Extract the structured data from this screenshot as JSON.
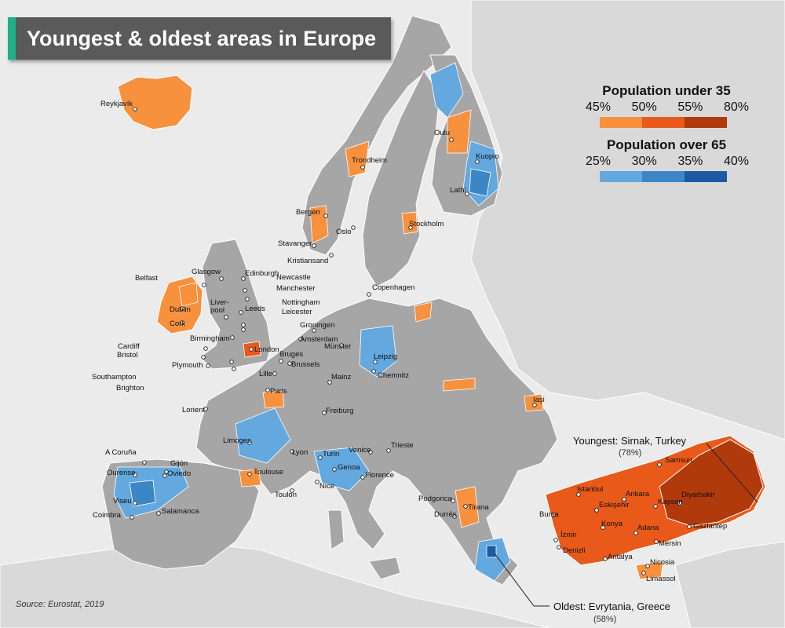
{
  "title": "Youngest & oldest areas in Europe",
  "legend": {
    "young": {
      "title": "Population under 35",
      "ticks": [
        "45%",
        "50%",
        "55%",
        "80%"
      ],
      "colors": [
        "#f7913e",
        "#e8591a",
        "#b13a0c"
      ]
    },
    "old": {
      "title": "Population over 65",
      "ticks": [
        "25%",
        "30%",
        "35%",
        "40%"
      ],
      "colors": [
        "#63a8de",
        "#3d86c6",
        "#1e5aa4"
      ]
    }
  },
  "source": "Source: Eurostat, 2019",
  "callouts": {
    "youngest": {
      "label": "Youngest: Sirnak, Turkey",
      "value": "(78%)"
    },
    "oldest": {
      "label": "Oldest: Evrytania, Greece",
      "value": "(58%)"
    }
  },
  "colors": {
    "land": "#a6a6a6",
    "sea": "#ebebeb",
    "other_land": "#d9d9d9",
    "border": "#ffffff"
  },
  "cities": [
    {
      "name": "Reykjavík"
    },
    {
      "name": "Oulu"
    },
    {
      "name": "Trondheim"
    },
    {
      "name": "Kuopio"
    },
    {
      "name": "Lathi"
    },
    {
      "name": "Bergen"
    },
    {
      "name": "Oslo"
    },
    {
      "name": "Stockholm"
    },
    {
      "name": "Stavanger"
    },
    {
      "name": "Kristiansand"
    },
    {
      "name": "Belfast"
    },
    {
      "name": "Glasgow"
    },
    {
      "name": "Edinburgh"
    },
    {
      "name": "Newcastle"
    },
    {
      "name": "Manchester"
    },
    {
      "name": "Liver-"
    },
    {
      "name": "pool"
    },
    {
      "name": "Leeds"
    },
    {
      "name": "Nottingham"
    },
    {
      "name": "Leicester"
    },
    {
      "name": "Copenhagen"
    },
    {
      "name": "Dublin"
    },
    {
      "name": "Cork"
    },
    {
      "name": "Birmingham"
    },
    {
      "name": "Groningen"
    },
    {
      "name": "Amsterdam"
    },
    {
      "name": "Cardiff"
    },
    {
      "name": "London"
    },
    {
      "name": "Münster"
    },
    {
      "name": "Bristol"
    },
    {
      "name": "Bruges"
    },
    {
      "name": "Leipzig"
    },
    {
      "name": "Plymouth"
    },
    {
      "name": "Brussels"
    },
    {
      "name": "Lille"
    },
    {
      "name": "Chemnitz"
    },
    {
      "name": "Southampton"
    },
    {
      "name": "Brighton"
    },
    {
      "name": "Mainz"
    },
    {
      "name": "Paris"
    },
    {
      "name": "Iaşi"
    },
    {
      "name": "Lorient"
    },
    {
      "name": "Freiburg"
    },
    {
      "name": "Limoges"
    },
    {
      "name": "Lyon"
    },
    {
      "name": "Trieste"
    },
    {
      "name": "A Coruña"
    },
    {
      "name": "Venice"
    },
    {
      "name": "Gijón"
    },
    {
      "name": "Turin"
    },
    {
      "name": "Samsun"
    },
    {
      "name": "Ourense"
    },
    {
      "name": "Oviedo"
    },
    {
      "name": "Toulouse"
    },
    {
      "name": "Genoa"
    },
    {
      "name": "Florence"
    },
    {
      "name": "Istanbul"
    },
    {
      "name": "Nice"
    },
    {
      "name": "Ankara"
    },
    {
      "name": "Diyarbakir"
    },
    {
      "name": "Toulon"
    },
    {
      "name": "Viseu"
    },
    {
      "name": "Podgorica"
    },
    {
      "name": "Bursa"
    },
    {
      "name": "Eskişehir"
    },
    {
      "name": "Kayseri"
    },
    {
      "name": "Coimbra"
    },
    {
      "name": "Salamanca"
    },
    {
      "name": "Tirana"
    },
    {
      "name": "Durrës"
    },
    {
      "name": "İzmir"
    },
    {
      "name": "Konya"
    },
    {
      "name": "Adana"
    },
    {
      "name": "Gaziantep"
    },
    {
      "name": "Mersin"
    },
    {
      "name": "Denizli"
    },
    {
      "name": "Antalya"
    },
    {
      "name": "Nicosia"
    },
    {
      "name": "Limassol"
    }
  ]
}
